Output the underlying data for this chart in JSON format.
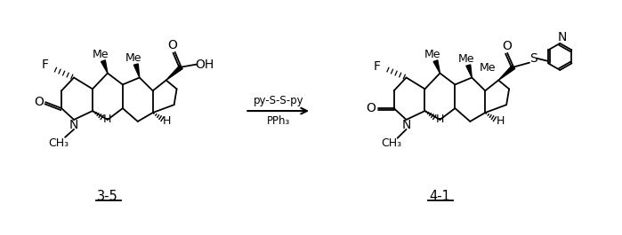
{
  "background_color": "#ffffff",
  "arrow_text_top": "py-S-S-py",
  "arrow_text_bottom": "PPh₃",
  "label_left": "3-5",
  "label_right": "4-1",
  "figsize": [
    6.99,
    2.65
  ],
  "dpi": 100
}
